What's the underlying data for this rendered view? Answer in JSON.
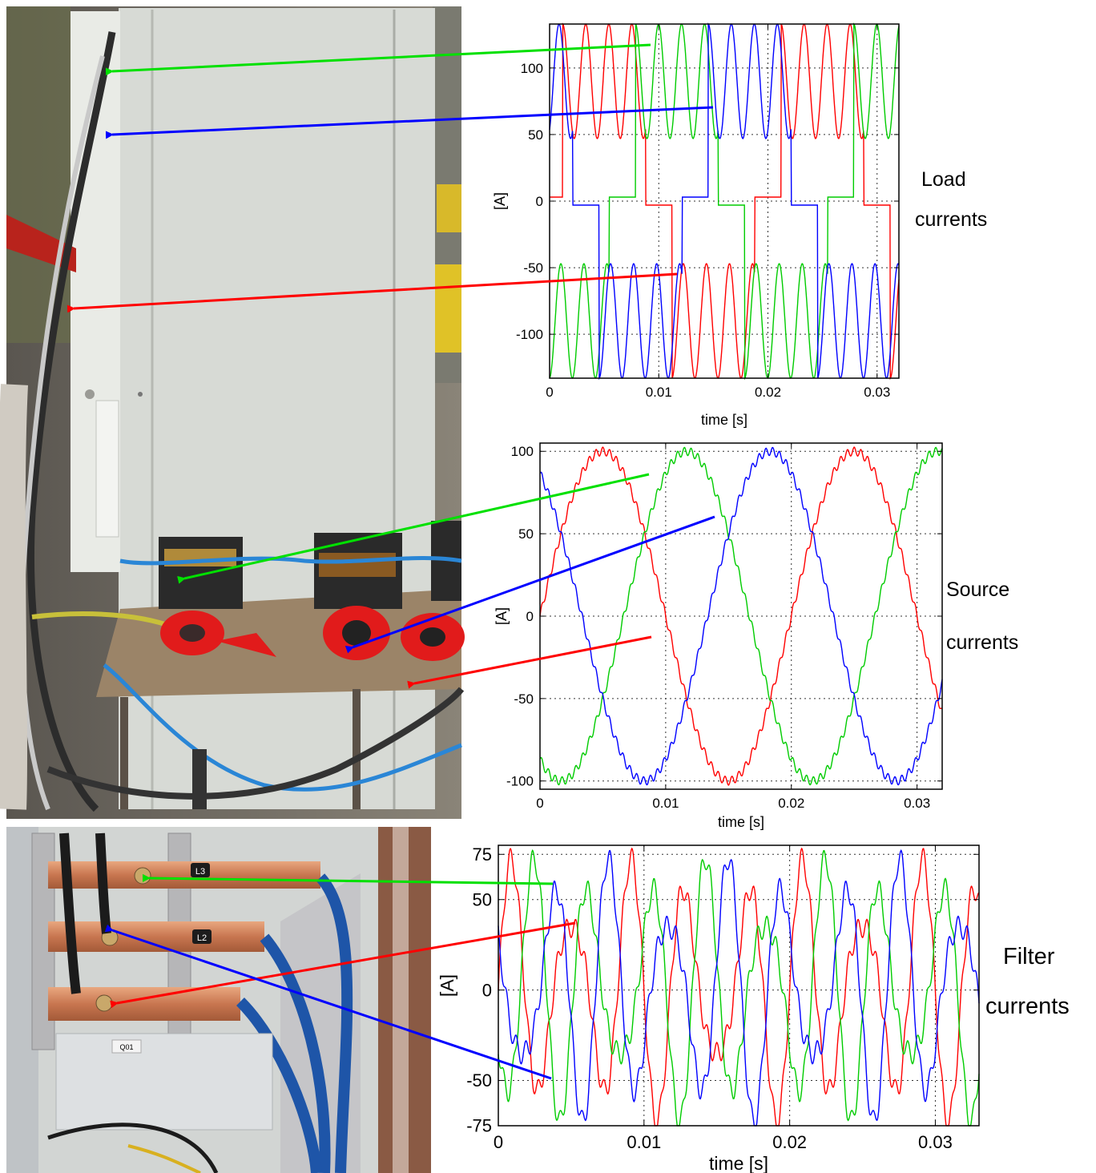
{
  "chart_data": [
    {
      "type": "line",
      "title": "Load currents",
      "xlabel": "time [s]",
      "ylabel": "[A]",
      "xlim": [
        0,
        0.032
      ],
      "ylim": [
        -133,
        133
      ],
      "xticks": [
        0,
        0.01,
        0.02,
        0.03
      ],
      "yticks": [
        -100,
        -50,
        0,
        50,
        100
      ],
      "xtick_labels": [
        "0",
        "0.01",
        "0.02",
        "0.03"
      ],
      "ytick_labels": [
        "-100",
        "-50",
        "0",
        "50",
        "100"
      ],
      "grid": true,
      "waveform": "rectifier load current: pulse-shaped, three phases, ~133 A peak, ~210 Hz ripple",
      "series": [
        {
          "color": "#ff0000",
          "phase_offset_deg": 0
        },
        {
          "color": "#00cc00",
          "phase_offset_deg": -120
        },
        {
          "color": "#0000ff",
          "phase_offset_deg": 120
        }
      ]
    },
    {
      "type": "line",
      "title": "Source currents",
      "xlabel": "time [s]",
      "ylabel": "[A]",
      "xlim": [
        0,
        0.032
      ],
      "ylim": [
        -105,
        105
      ],
      "xticks": [
        0,
        0.01,
        0.02,
        0.03
      ],
      "yticks": [
        -100,
        -50,
        0,
        50,
        100
      ],
      "xtick_labels": [
        "0",
        "0.01",
        "0.02",
        "0.03"
      ],
      "ytick_labels": [
        "-100",
        "-50",
        "0",
        "50",
        "100"
      ],
      "grid": true,
      "waveform": "near-sinusoidal, three phases, ~100 A peak, 50 Hz",
      "series": [
        {
          "color": "#ff0000",
          "phase_offset_deg": 0
        },
        {
          "color": "#00cc00",
          "phase_offset_deg": -120
        },
        {
          "color": "#0000ff",
          "phase_offset_deg": 120
        }
      ]
    },
    {
      "type": "line",
      "title": "Filter currents",
      "xlabel": "time [s]",
      "ylabel": "[A]",
      "xlim": [
        0,
        0.033
      ],
      "ylim": [
        -75,
        80
      ],
      "xticks": [
        0,
        0.01,
        0.02,
        0.03
      ],
      "yticks": [
        -75,
        -50,
        0,
        50,
        75
      ],
      "xtick_labels": [
        "0",
        "0.01",
        "0.02",
        "0.03"
      ],
      "ytick_labels": [
        "-75",
        "-50",
        "0",
        "50",
        "75"
      ],
      "grid": true,
      "waveform": "harmonic compensation current: load minus source, three phases, ~75 A peak",
      "series": [
        {
          "color": "#ff0000",
          "phase_offset_deg": 0
        },
        {
          "color": "#00cc00",
          "phase_offset_deg": -120
        },
        {
          "color": "#0000ff",
          "phase_offset_deg": 120
        }
      ]
    }
  ],
  "labels": {
    "load_line1": "Load",
    "load_line2": "currents",
    "source_line1": "Source",
    "source_line2": "currents",
    "filter_line1": "Filter",
    "filter_line2": "currents"
  },
  "photos": {
    "top": "cabinet-with-current-clamps-photo",
    "bottom": "copper-busbars-L1-L2-L3-photo",
    "busbar_tags": [
      "L3",
      "L2",
      "Q01"
    ]
  },
  "colors": {
    "phase_a": "#ff0000",
    "phase_b": "#00cc00",
    "phase_c": "#0000ff"
  }
}
